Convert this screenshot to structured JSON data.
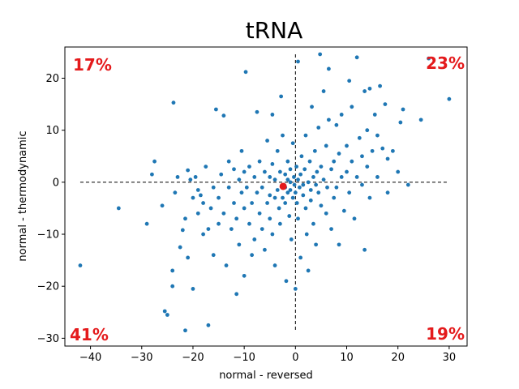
{
  "chart_data": {
    "type": "scatter",
    "title": "tRNA",
    "xlabel": "normal - reversed",
    "ylabel": "normal - thermodynamic",
    "xlim": [
      -45,
      33.5
    ],
    "ylim": [
      -31.5,
      26
    ],
    "xticks": [
      -40,
      -30,
      -20,
      -10,
      0,
      10,
      20,
      30
    ],
    "yticks": [
      -30,
      -20,
      -10,
      0,
      10,
      20
    ],
    "grid": false,
    "point_color": "#1f77b4",
    "accent_color": "#e41a1c",
    "points": [
      [
        -42,
        -16
      ],
      [
        -34.5,
        -5
      ],
      [
        -29,
        -8
      ],
      [
        -28,
        1.5
      ],
      [
        -27.5,
        4
      ],
      [
        -26,
        -4.5
      ],
      [
        -25.5,
        -24.8
      ],
      [
        -25,
        -25.5
      ],
      [
        -24,
        -20
      ],
      [
        -24,
        -17
      ],
      [
        -23.8,
        15.3
      ],
      [
        -23.5,
        -2
      ],
      [
        -23,
        1
      ],
      [
        -22.5,
        -12.5
      ],
      [
        -22,
        -9.2
      ],
      [
        -21.5,
        -7
      ],
      [
        -21.5,
        -28.5
      ],
      [
        -21,
        2.3
      ],
      [
        -21,
        -14.5
      ],
      [
        -20.5,
        0.5
      ],
      [
        -20,
        -3
      ],
      [
        -20,
        -20.5
      ],
      [
        -19.5,
        1
      ],
      [
        -19,
        -1.5
      ],
      [
        -19,
        -6
      ],
      [
        -18.5,
        -2.5
      ],
      [
        -18,
        -10
      ],
      [
        -18,
        -4
      ],
      [
        -17.5,
        3
      ],
      [
        -17,
        -27.5
      ],
      [
        -17,
        -9
      ],
      [
        -16.5,
        -5
      ],
      [
        -16,
        -1
      ],
      [
        -16,
        -14
      ],
      [
        -15.5,
        14
      ],
      [
        -15,
        -3
      ],
      [
        -15,
        -8
      ],
      [
        -14.5,
        1.5
      ],
      [
        -14,
        -6
      ],
      [
        -14,
        12.8
      ],
      [
        -13.5,
        -16
      ],
      [
        -13,
        4
      ],
      [
        -13,
        -1
      ],
      [
        -12.5,
        -9
      ],
      [
        -12,
        -4
      ],
      [
        -12,
        2.5
      ],
      [
        -11.5,
        -7
      ],
      [
        -11.5,
        -21.5
      ],
      [
        -11,
        0.5
      ],
      [
        -11,
        -12
      ],
      [
        -10.5,
        6
      ],
      [
        -10.5,
        -2
      ],
      [
        -10,
        -5
      ],
      [
        -10,
        2
      ],
      [
        -10,
        -18
      ],
      [
        -9.7,
        21.2
      ],
      [
        -9.5,
        -1
      ],
      [
        -9,
        -8
      ],
      [
        -9,
        3
      ],
      [
        -8.5,
        -4
      ],
      [
        -8.5,
        -14
      ],
      [
        -8,
        1
      ],
      [
        -8,
        -11
      ],
      [
        -7.5,
        13.5
      ],
      [
        -7.5,
        -2
      ],
      [
        -7,
        -6
      ],
      [
        -7,
        4
      ],
      [
        -6.5,
        -9
      ],
      [
        -6.5,
        -1
      ],
      [
        -6,
        2
      ],
      [
        -6,
        -13
      ],
      [
        -5.5,
        -4
      ],
      [
        -5.5,
        8
      ],
      [
        -5,
        -7
      ],
      [
        -5,
        1
      ],
      [
        -5,
        -2.5
      ],
      [
        -4.5,
        13
      ],
      [
        -4.5,
        -10
      ],
      [
        -4.5,
        3.5
      ],
      [
        -4,
        -3
      ],
      [
        -4,
        0.5
      ],
      [
        -4,
        -16
      ],
      [
        -3.5,
        6
      ],
      [
        -3.5,
        -1.5
      ],
      [
        -3.2,
        -5
      ],
      [
        -3,
        2
      ],
      [
        -3,
        -8
      ],
      [
        -2.8,
        16.5
      ],
      [
        -2.5,
        -3
      ],
      [
        -2.5,
        9
      ],
      [
        -2,
        -1
      ],
      [
        -2,
        1.5
      ],
      [
        -2,
        -4
      ],
      [
        -1.8,
        -19
      ],
      [
        -1.5,
        0.5
      ],
      [
        -1.5,
        -2
      ],
      [
        -1.5,
        4
      ],
      [
        -1.2,
        -6.5
      ],
      [
        -1,
        0
      ],
      [
        -1,
        -1.5
      ],
      [
        -1,
        2.5
      ],
      [
        -0.8,
        -11
      ],
      [
        -0.5,
        7.5
      ],
      [
        -0.5,
        -3
      ],
      [
        -0.3,
        1
      ],
      [
        -0.2,
        -0.5
      ],
      [
        0,
        -2
      ],
      [
        0,
        -20.5
      ],
      [
        0.2,
        3
      ],
      [
        0.3,
        -4
      ],
      [
        0.5,
        0.5
      ],
      [
        0.5,
        23.2
      ],
      [
        0.5,
        -7
      ],
      [
        0.8,
        -1
      ],
      [
        1,
        1.5
      ],
      [
        1,
        -14.5
      ],
      [
        1.2,
        5
      ],
      [
        1.5,
        -2.5
      ],
      [
        1.5,
        -0.5
      ],
      [
        1.8,
        2.5
      ],
      [
        2,
        -5
      ],
      [
        2,
        9
      ],
      [
        2.2,
        -10
      ],
      [
        2.5,
        0
      ],
      [
        2.5,
        -17
      ],
      [
        2.8,
        4
      ],
      [
        3,
        -1.5
      ],
      [
        3,
        -3.5
      ],
      [
        3.2,
        14.5
      ],
      [
        3.5,
        1
      ],
      [
        3.5,
        -8
      ],
      [
        3.8,
        6
      ],
      [
        4,
        -0.5
      ],
      [
        4,
        -12
      ],
      [
        4.2,
        2
      ],
      [
        4.5,
        10.5
      ],
      [
        4.5,
        -2
      ],
      [
        4.8,
        24.6
      ],
      [
        5,
        -4.5
      ],
      [
        5,
        3
      ],
      [
        5.5,
        0.5
      ],
      [
        5.5,
        17.5
      ],
      [
        6,
        -6
      ],
      [
        6,
        7
      ],
      [
        6.2,
        -1
      ],
      [
        6.5,
        12
      ],
      [
        6.5,
        21.8
      ],
      [
        7,
        2.5
      ],
      [
        7,
        -9
      ],
      [
        7.5,
        -3
      ],
      [
        7.5,
        4
      ],
      [
        8,
        11
      ],
      [
        8,
        -1
      ],
      [
        8.5,
        5.5
      ],
      [
        8.5,
        -12
      ],
      [
        9,
        13
      ],
      [
        9,
        1
      ],
      [
        9.5,
        -5.5
      ],
      [
        10,
        7
      ],
      [
        10,
        2
      ],
      [
        10.5,
        19.5
      ],
      [
        10.5,
        -2
      ],
      [
        11,
        14.5
      ],
      [
        11,
        4
      ],
      [
        11.5,
        -7
      ],
      [
        12,
        24
      ],
      [
        12,
        1
      ],
      [
        12.5,
        8.5
      ],
      [
        13,
        -0.5
      ],
      [
        13,
        5
      ],
      [
        13.5,
        -13
      ],
      [
        13.5,
        17.5
      ],
      [
        14,
        3
      ],
      [
        14,
        10
      ],
      [
        14.5,
        -3
      ],
      [
        14.5,
        18
      ],
      [
        15,
        6
      ],
      [
        15.5,
        13
      ],
      [
        16,
        9
      ],
      [
        16,
        1
      ],
      [
        16.5,
        18.5
      ],
      [
        17,
        6.5
      ],
      [
        17.5,
        15
      ],
      [
        18,
        -2
      ],
      [
        18,
        4.5
      ],
      [
        19,
        6
      ],
      [
        20,
        2
      ],
      [
        20.5,
        11.5
      ],
      [
        21,
        14
      ],
      [
        22,
        -0.5
      ],
      [
        24.5,
        12
      ],
      [
        26,
        23.8
      ],
      [
        30,
        16
      ]
    ],
    "mean_point": [
      -2.4,
      -0.8
    ],
    "reference_lines": {
      "x_value": 0,
      "y_value": 0
    },
    "quadrant_labels": [
      {
        "position": "top-left",
        "text": "17%"
      },
      {
        "position": "top-right",
        "text": "23%"
      },
      {
        "position": "bottom-left",
        "text": "41%"
      },
      {
        "position": "bottom-right",
        "text": "19%"
      }
    ]
  }
}
